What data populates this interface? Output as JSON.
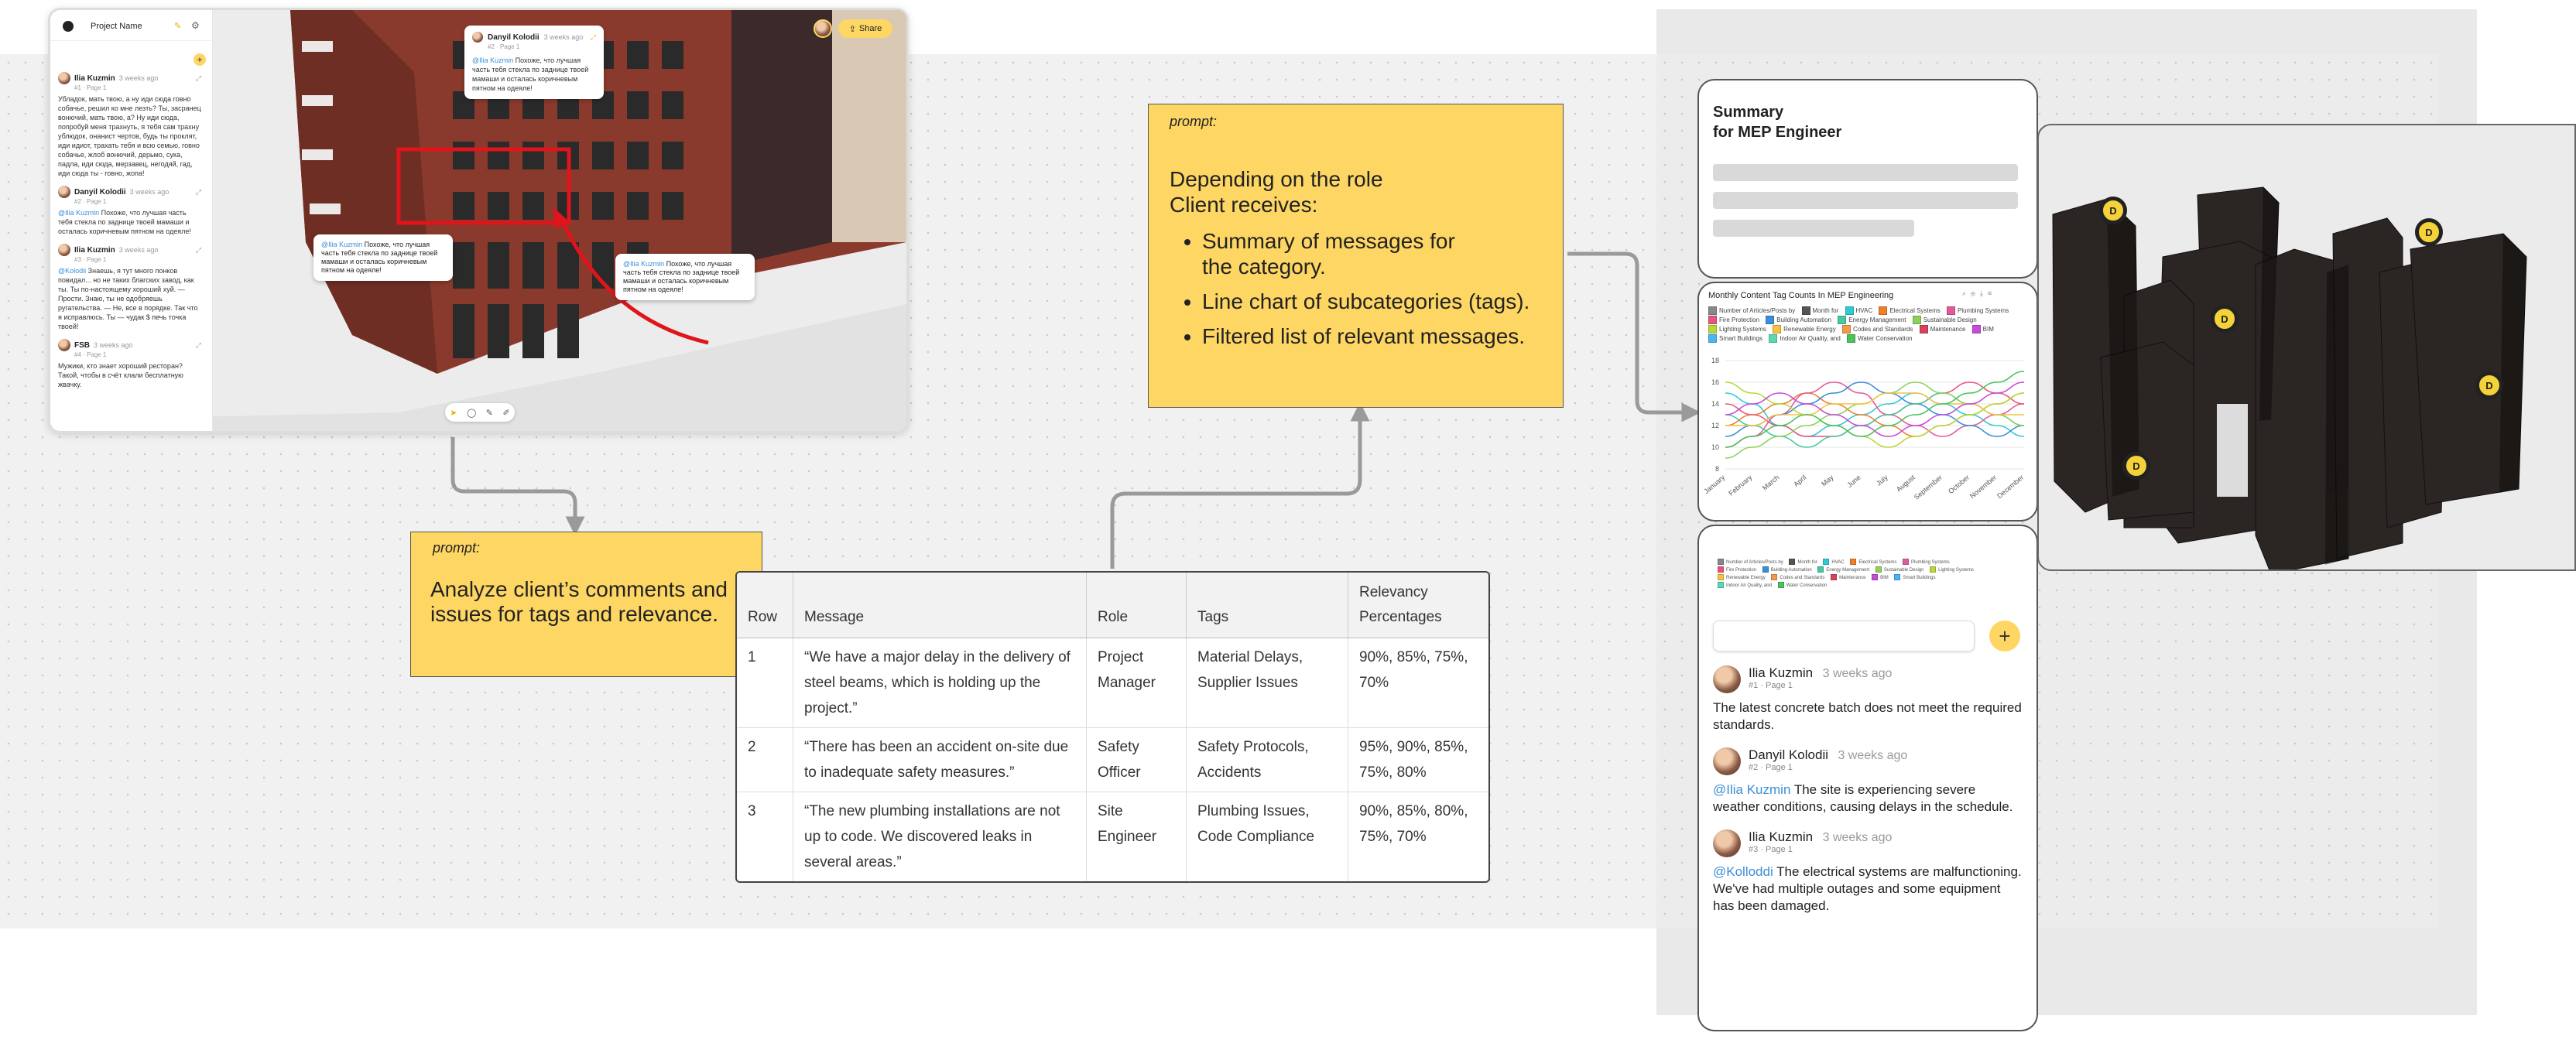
{
  "app": {
    "project_name": "Project Name",
    "share_label": "Share",
    "sidebar_comments": [
      {
        "name": "Ilia Kuzmin",
        "time": "3 weeks ago",
        "sub": "#1 · Page 1",
        "mention": "",
        "text": "Убладок, мать твою, а ну иди сюда говно собачье, решил ко мне лезть? Ты, засранец вонючий, мать твою, а? Ну иди сюда, попробуй меня трахнуть, я тебя сам трахну ублюдок, онанист чертов, будь ты проклят, иди идиот, трахать тебя и всю семью, говно собачье, жлоб вонючий, дерьмо, сука, падла, иди сюда, мерзавец, негодяй, гад, иди сюда ты - говно, жопа!"
      },
      {
        "name": "Danyil Kolodii",
        "time": "3 weeks ago",
        "sub": "#2 · Page 1",
        "mention": "@Ilia Kuzmin",
        "text": " Похоже, что лучшая часть тебя стекла по заднице твоей мамаши и осталась коричневым пятном на одеяле!"
      },
      {
        "name": "Ilia Kuzmin",
        "time": "3 weeks ago",
        "sub": "#3 · Page 1",
        "mention": "@Kolodii",
        "text": " Знаешь, я тут много понков повидал... но не таких благских завод, как ты. Ты по-настоящему хороший хуй. — Прости. Знаю, ты не одобряешь ругательства. — Не, все в порядке. Так что я исправлюсь. Ты — чудак $ печь точка твоей!"
      },
      {
        "name": "FSB",
        "time": "3 weeks ago",
        "sub": "#4 · Page 1",
        "mention": "",
        "text": "Мужики, кто знает хороший ресторан? Такой, чтобы в счёт клали бесплатную жвачку."
      }
    ],
    "viewer_bubbles": [
      {
        "name": "Danyil Kolodii",
        "time": "3 weeks ago",
        "sub": "#2 · Page 1",
        "mention": "@Ilia Kuzmin",
        "text": " Похоже, что лучшая часть тебя стекла по заднице твоей мамаши и осталась коричневым пятном на одеяле!"
      },
      {
        "mention": "@Ilia Kuzmin",
        "text": " Похоже, что лучшая часть тебя стекла по заднице твоей мамаши и осталась коричневым пятном на одеяле!"
      },
      {
        "mention": "@Ilia Kuzmin",
        "text": " Похоже, что лучшая часть тебя стекла по заднице твоей мамаши и осталась коричневым пятном на одеяле!"
      }
    ],
    "toolbar_icons": [
      "pointer-icon",
      "comment-icon",
      "pen-icon",
      "edit-icon"
    ]
  },
  "prompt1": {
    "label": "prompt:",
    "text": "Analyze client’s comments and issues for tags and relevance."
  },
  "prompt2": {
    "label": "prompt:",
    "heading": "Depending on the role Client receives:",
    "bullets": [
      "Summary of messages for the category.",
      "Line chart of subcategories (tags).",
      "Filtered list of relevant messages."
    ]
  },
  "table": {
    "headers": [
      "Row",
      "Message",
      "Role",
      "Tags",
      "Relevancy Percentages"
    ],
    "rows": [
      [
        "1",
        "“We have a major delay in the delivery of steel beams, which is holding up the project.”",
        "Project Manager",
        "Material Delays, Supplier Issues",
        "90%, 85%, 75%, 70%"
      ],
      [
        "2",
        "“There has been an accident on-site due to inadequate safety measures.”",
        "Safety Officer",
        "Safety Protocols, Accidents",
        "95%, 90%, 85%, 75%, 80%"
      ],
      [
        "3",
        "“The new plumbing installations are not up to code. We discovered leaks in several areas.”",
        "Site Engineer",
        "Plumbing Issues, Code Compliance",
        "90%, 85%, 80%, 75%, 70%"
      ]
    ]
  },
  "summary": {
    "title_line1": "Summary",
    "title_line2": "for MEP Engineer"
  },
  "legend_items": [
    {
      "label": "Number of Articles/Posts by",
      "color": "#888888"
    },
    {
      "label": "Month for",
      "color": "#555555"
    },
    {
      "label": "HVAC",
      "color": "#2ecbd6"
    },
    {
      "label": "Electrical Systems",
      "color": "#f07f2a"
    },
    {
      "label": "Plumbing Systems",
      "color": "#e35a9a"
    },
    {
      "label": "Fire Protection",
      "color": "#e9557a"
    },
    {
      "label": "Building Automation",
      "color": "#3a8fd8"
    },
    {
      "label": "Energy Management",
      "color": "#46c9a0"
    },
    {
      "label": "Sustainable Design",
      "color": "#8bd25a"
    },
    {
      "label": "Lighting Systems",
      "color": "#b7d83a"
    },
    {
      "label": "Renewable Energy",
      "color": "#f5c242"
    },
    {
      "label": "Codes and Standards",
      "color": "#f29a4a"
    },
    {
      "label": "Maintenance",
      "color": "#d8435a"
    },
    {
      "label": "BIM",
      "color": "#c84ad8"
    },
    {
      "label": "Smart Buildings",
      "color": "#4ab6f0"
    },
    {
      "label": "Indoor Air Quality, and",
      "color": "#5bd8b0"
    },
    {
      "label": "Water Conservation",
      "color": "#49c35a"
    }
  ],
  "chart_data": {
    "type": "line",
    "title": "Monthly Content Tag Counts In MEP Engineering",
    "categories": [
      "January",
      "February",
      "March",
      "April",
      "May",
      "June",
      "July",
      "August",
      "September",
      "October",
      "November",
      "December"
    ],
    "ylim": [
      8,
      18
    ],
    "yticks": [
      "8",
      "10",
      "12",
      "14",
      "16",
      "18"
    ],
    "grid": true,
    "legend_position": "top",
    "series": [
      {
        "name": "HVAC",
        "color": "#2ecbd6",
        "values": [
          15,
          14,
          12,
          11,
          12,
          13,
          14,
          15,
          14,
          13,
          12,
          11
        ]
      },
      {
        "name": "Electrical Systems",
        "color": "#f07f2a",
        "values": [
          12,
          13,
          14,
          15,
          14,
          13,
          12,
          11,
          12,
          13,
          14,
          15
        ]
      },
      {
        "name": "Plumbing Systems",
        "color": "#e35a9a",
        "values": [
          10,
          11,
          13,
          15,
          16,
          15,
          13,
          12,
          11,
          12,
          13,
          14
        ]
      },
      {
        "name": "Fire Protection",
        "color": "#e9557a",
        "values": [
          14,
          13,
          12,
          11,
          11,
          12,
          13,
          14,
          15,
          16,
          15,
          14
        ]
      },
      {
        "name": "Building Automation",
        "color": "#3a8fd8",
        "values": [
          11,
          12,
          13,
          14,
          15,
          16,
          15,
          14,
          13,
          12,
          11,
          12
        ]
      },
      {
        "name": "Energy Management",
        "color": "#46c9a0",
        "values": [
          13,
          12,
          11,
          10,
          11,
          12,
          13,
          14,
          15,
          14,
          13,
          12
        ]
      },
      {
        "name": "Sustainable Design",
        "color": "#8bd25a",
        "values": [
          9,
          10,
          11,
          12,
          13,
          14,
          15,
          16,
          15,
          14,
          13,
          12
        ]
      },
      {
        "name": "Lighting Systems",
        "color": "#b7d83a",
        "values": [
          16,
          15,
          14,
          13,
          12,
          11,
          10,
          11,
          12,
          13,
          14,
          15
        ]
      },
      {
        "name": "Renewable Energy",
        "color": "#f5c242",
        "values": [
          12,
          12,
          13,
          13,
          14,
          14,
          15,
          15,
          14,
          14,
          13,
          13
        ]
      },
      {
        "name": "BIM",
        "color": "#c84ad8",
        "values": [
          13,
          14,
          15,
          14,
          13,
          12,
          11,
          12,
          13,
          14,
          15,
          16
        ]
      },
      {
        "name": "Water Conservation",
        "color": "#49c35a",
        "values": [
          10,
          11,
          12,
          13,
          12,
          11,
          12,
          13,
          14,
          15,
          16,
          17
        ]
      }
    ]
  },
  "comments_panel": {
    "plus_label": "+",
    "comments": [
      {
        "name": "Ilia Kuzmin",
        "time": "3 weeks ago",
        "sub": "#1 · Page 1",
        "mention": "",
        "text": "The latest concrete batch does not meet the required standards."
      },
      {
        "name": "Danyil Kolodii",
        "time": "3 weeks ago",
        "sub": "#2 · Page 1",
        "mention": "@Ilia Kuzmin",
        "text": " The site is experiencing severe weather conditions, causing delays in the schedule."
      },
      {
        "name": "Ilia Kuzmin",
        "time": "3 weeks ago",
        "sub": "#3 · Page 1",
        "mention": "@Kolloddi",
        "text": " The electrical systems are malfunctioning. We've had multiple outages and some equipment has been damaged."
      }
    ]
  },
  "buildings_markers": [
    "D",
    "D",
    "D",
    "D",
    "D"
  ]
}
